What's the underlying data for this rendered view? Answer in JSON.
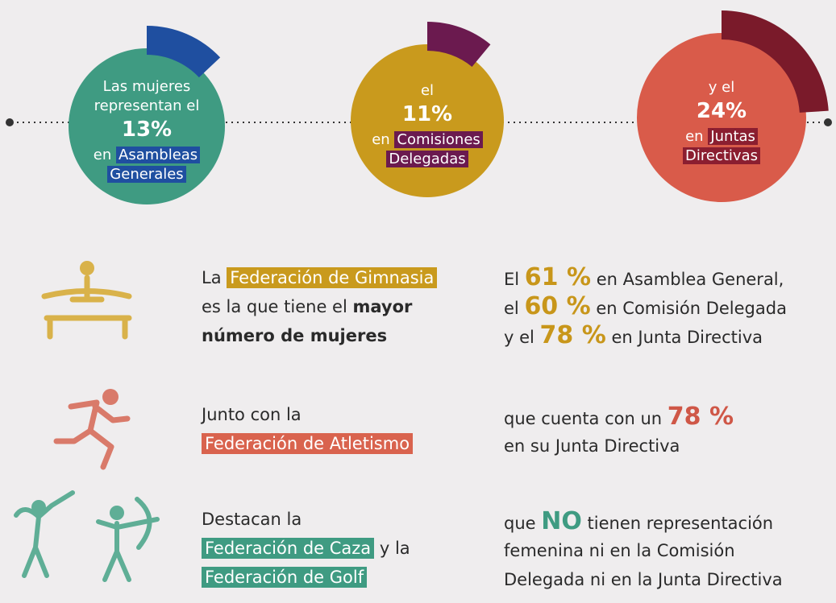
{
  "circles": [
    {
      "value": 13,
      "color": "#3f9b82",
      "arc_color": "#1f4fa0",
      "highlight_color": "#1f4fa0",
      "lines": [
        [
          {
            "text": "Las mujeres",
            "style": "plain"
          }
        ],
        [
          {
            "text": "representan el",
            "style": "plain"
          }
        ],
        [
          {
            "text": "13%",
            "style": "big"
          }
        ],
        [
          {
            "text": "en ",
            "style": "plain"
          },
          {
            "text": "Asambleas",
            "style": "hl"
          }
        ],
        [
          {
            "text": "Generales",
            "style": "hl"
          }
        ]
      ]
    },
    {
      "value": 11,
      "color": "#c99a1d",
      "arc_color": "#6b1a4f",
      "highlight_color": "#6b1a4f",
      "lines": [
        [
          {
            "text": "el",
            "style": "plain"
          }
        ],
        [
          {
            "text": "11%",
            "style": "big"
          }
        ],
        [
          {
            "text": "en ",
            "style": "plain"
          },
          {
            "text": "Comisiones",
            "style": "hl"
          }
        ],
        [
          {
            "text": "Delegadas",
            "style": "hl"
          }
        ]
      ]
    },
    {
      "value": 24,
      "color": "#d95b4a",
      "arc_color": "#7a1a2a",
      "highlight_color": "#8b1e30",
      "lines": [
        [
          {
            "text": "y el",
            "style": "plain"
          }
        ],
        [
          {
            "text": "24%",
            "style": "big"
          }
        ],
        [
          {
            "text": "en ",
            "style": "plain"
          },
          {
            "text": "Juntas",
            "style": "hl"
          }
        ],
        [
          {
            "text": "Directivas",
            "style": "hl"
          }
        ]
      ]
    }
  ],
  "rows": [
    {
      "left": [
        [
          {
            "text": "La ",
            "style": "plain"
          },
          {
            "text": "Federación de Gimnasia",
            "style": "hl-gold"
          }
        ],
        [
          {
            "text": "es la que tiene el ",
            "style": "plain"
          },
          {
            "text": "mayor",
            "style": "bold"
          }
        ],
        [
          {
            "text": "número de mujeres",
            "style": "bold"
          }
        ]
      ],
      "right": [
        [
          {
            "text": "El ",
            "style": "plain"
          },
          {
            "text": "61 %",
            "style": "num-gold"
          },
          {
            "text": " en Asamblea General,",
            "style": "plain"
          }
        ],
        [
          {
            "text": "el ",
            "style": "plain"
          },
          {
            "text": "60 %",
            "style": "num-gold"
          },
          {
            "text": " en Comisión Delegada",
            "style": "plain"
          }
        ],
        [
          {
            "text": "y el ",
            "style": "plain"
          },
          {
            "text": "78 %",
            "style": "num-gold"
          },
          {
            "text": " en Junta Directiva",
            "style": "plain"
          }
        ]
      ]
    },
    {
      "left": [
        [
          {
            "text": "Junto con la",
            "style": "plain"
          }
        ],
        [
          {
            "text": "Federación de Atletismo",
            "style": "hl-red"
          }
        ]
      ],
      "right": [
        [
          {
            "text": "que cuenta con un ",
            "style": "plain"
          },
          {
            "text": "78 %",
            "style": "num-red"
          }
        ],
        [
          {
            "text": "en su Junta Directiva",
            "style": "plain"
          }
        ]
      ]
    },
    {
      "left": [
        [
          {
            "text": "Destacan la",
            "style": "plain"
          }
        ],
        [
          {
            "text": "Federación de Caza",
            "style": "hl-teal"
          },
          {
            "text": " y la",
            "style": "plain"
          }
        ],
        [
          {
            "text": "Federación de Golf",
            "style": "hl-teal"
          }
        ]
      ],
      "right": [
        [
          {
            "text": "que ",
            "style": "plain"
          },
          {
            "text": "NO",
            "style": "num-teal"
          },
          {
            "text": " tienen representación",
            "style": "plain"
          }
        ],
        [
          {
            "text": "femenina ni en la Comisión",
            "style": "plain"
          }
        ],
        [
          {
            "text": "Delegada ni en la Junta Directiva",
            "style": "plain"
          }
        ]
      ]
    }
  ]
}
